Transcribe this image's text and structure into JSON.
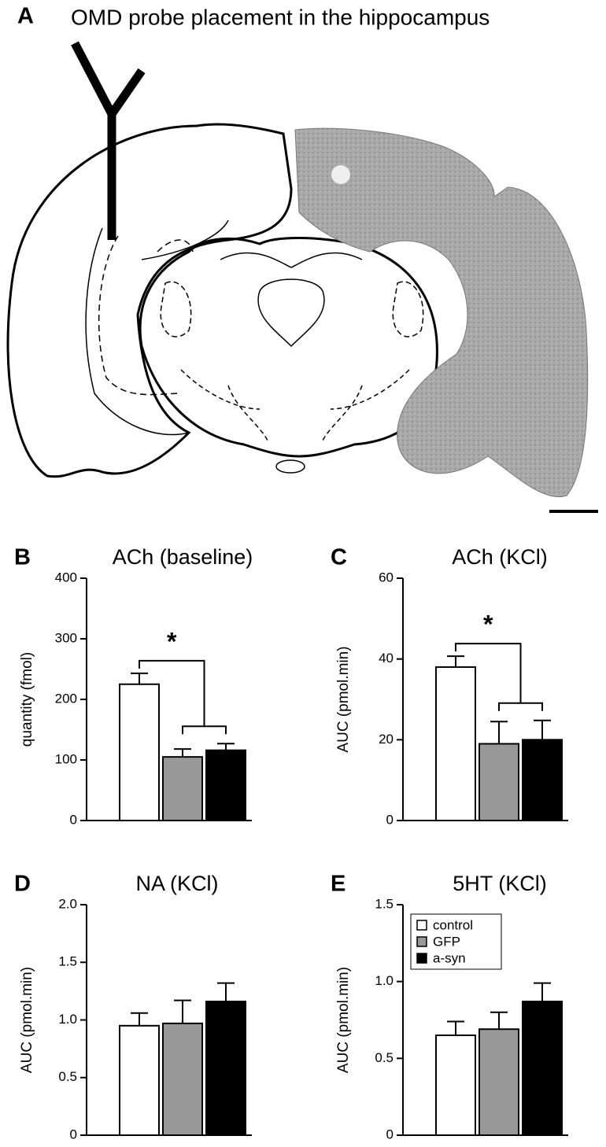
{
  "panel_a": {
    "label": "A",
    "title": "OMD probe placement in the hippocampus"
  },
  "chart_data": [
    {
      "type": "bar",
      "panel": "B",
      "title": "ACh (baseline)",
      "y_label": "quantity (fmol)",
      "ylim": [
        0,
        400
      ],
      "yticks": [
        0,
        100,
        200,
        300,
        400
      ],
      "annotation": "*",
      "series": [
        {
          "color": "#ffffff",
          "values": [
            225
          ],
          "errors": [
            18
          ]
        },
        {
          "color": "#999999",
          "values": [
            105
          ],
          "errors": [
            13
          ]
        },
        {
          "color": "#000000",
          "values": [
            116
          ],
          "errors": [
            11
          ]
        }
      ]
    },
    {
      "type": "bar",
      "panel": "C",
      "title": "ACh (KCl)",
      "y_label": "AUC (pmol.min)",
      "ylim": [
        0,
        60
      ],
      "yticks": [
        0,
        20,
        40,
        60
      ],
      "annotation": "*",
      "series": [
        {
          "color": "#ffffff",
          "values": [
            38
          ],
          "errors": [
            2.7
          ]
        },
        {
          "color": "#999999",
          "values": [
            19
          ],
          "errors": [
            5.5
          ]
        },
        {
          "color": "#000000",
          "values": [
            20
          ],
          "errors": [
            4.8
          ]
        }
      ]
    },
    {
      "type": "bar",
      "panel": "D",
      "title": "NA (KCl)",
      "y_label": "AUC (pmol.min)",
      "ylim": [
        0,
        2
      ],
      "yticks": [
        0,
        0.5,
        {
          "value": 1,
          "label": "1.0"
        },
        1.5,
        {
          "value": 2,
          "label": "2.0"
        }
      ],
      "series": [
        {
          "color": "#ffffff",
          "values": [
            0.95
          ],
          "errors": [
            0.11
          ]
        },
        {
          "color": "#999999",
          "values": [
            0.97
          ],
          "errors": [
            0.2
          ]
        },
        {
          "color": "#000000",
          "values": [
            1.16
          ],
          "errors": [
            0.16
          ]
        }
      ]
    },
    {
      "type": "bar",
      "panel": "E",
      "title": "5HT (KCl)",
      "y_label": "AUC (pmol.min)",
      "ylim": [
        0,
        1.5
      ],
      "yticks": [
        0,
        0.5,
        {
          "value": 1,
          "label": "1.0"
        },
        1.5
      ],
      "legend": "upper-left",
      "series": [
        {
          "name": "control",
          "color": "#ffffff",
          "values": [
            0.65
          ],
          "errors": [
            0.09
          ]
        },
        {
          "name": "GFP",
          "color": "#999999",
          "values": [
            0.69
          ],
          "errors": [
            0.11
          ]
        },
        {
          "name": "a-syn",
          "color": "#000000",
          "values": [
            0.87
          ],
          "errors": [
            0.12
          ]
        }
      ]
    }
  ]
}
